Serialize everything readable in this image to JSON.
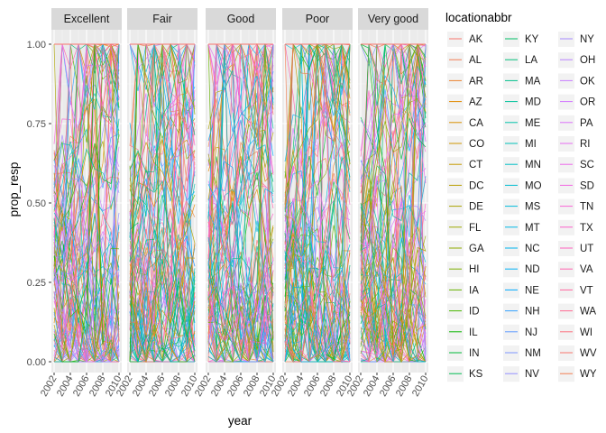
{
  "chart_data": {
    "type": "line",
    "facets": [
      "Excellent",
      "Fair",
      "Good",
      "Poor",
      "Very good"
    ],
    "xlabel": "year",
    "ylabel": "prop_resp",
    "xlim": [
      2002,
      2010
    ],
    "ylim": [
      0,
      1
    ],
    "x_ticks": [
      "2002",
      "2004",
      "2006",
      "2008",
      "2010"
    ],
    "y_ticks": [
      "0.00",
      "0.25",
      "0.50",
      "0.75",
      "1.00"
    ],
    "grid": true,
    "legend": {
      "title": "locationabbr",
      "position": "right",
      "entries": [
        {
          "label": "AK",
          "color": "#F8766D"
        },
        {
          "label": "AL",
          "color": "#F27D52"
        },
        {
          "label": "AR",
          "color": "#EA8331"
        },
        {
          "label": "AZ",
          "color": "#E18A00"
        },
        {
          "label": "CA",
          "color": "#D89000"
        },
        {
          "label": "CO",
          "color": "#CE9500"
        },
        {
          "label": "CT",
          "color": "#C49A00"
        },
        {
          "label": "DC",
          "color": "#B89E00"
        },
        {
          "label": "DE",
          "color": "#ABA300"
        },
        {
          "label": "FL",
          "color": "#9DA700"
        },
        {
          "label": "GA",
          "color": "#8EAB00"
        },
        {
          "label": "HI",
          "color": "#7CAE00"
        },
        {
          "label": "IA",
          "color": "#66B200"
        },
        {
          "label": "ID",
          "color": "#49B500"
        },
        {
          "label": "IL",
          "color": "#0CB702"
        },
        {
          "label": "IN",
          "color": "#00BA38"
        },
        {
          "label": "KS",
          "color": "#00BC53"
        },
        {
          "label": "KY",
          "color": "#00BE67"
        },
        {
          "label": "LA",
          "color": "#00BF7A"
        },
        {
          "label": "MA",
          "color": "#00C08B"
        },
        {
          "label": "MD",
          "color": "#00C19B"
        },
        {
          "label": "ME",
          "color": "#00C1AA"
        },
        {
          "label": "MI",
          "color": "#00C0B8"
        },
        {
          "label": "MN",
          "color": "#00BFC4"
        },
        {
          "label": "MO",
          "color": "#00BDD0"
        },
        {
          "label": "MS",
          "color": "#00BBDC"
        },
        {
          "label": "MT",
          "color": "#00B8E7"
        },
        {
          "label": "NC",
          "color": "#00B4EF"
        },
        {
          "label": "ND",
          "color": "#00B0F6"
        },
        {
          "label": "NE",
          "color": "#00ABFD"
        },
        {
          "label": "NH",
          "color": "#35A2FF"
        },
        {
          "label": "NJ",
          "color": "#619CFF"
        },
        {
          "label": "NM",
          "color": "#7F96FF"
        },
        {
          "label": "NV",
          "color": "#9590FF"
        },
        {
          "label": "NY",
          "color": "#A58AFF"
        },
        {
          "label": "OH",
          "color": "#B983FF"
        },
        {
          "label": "OK",
          "color": "#C77CFF"
        },
        {
          "label": "OR",
          "color": "#D376FF"
        },
        {
          "label": "PA",
          "color": "#DC71FA"
        },
        {
          "label": "RI",
          "color": "#E56CF3"
        },
        {
          "label": "SC",
          "color": "#EC69EB"
        },
        {
          "label": "SD",
          "color": "#F266E1"
        },
        {
          "label": "TN",
          "color": "#F865D6"
        },
        {
          "label": "TX",
          "color": "#FC61C9"
        },
        {
          "label": "UT",
          "color": "#FF61BD"
        },
        {
          "label": "VA",
          "color": "#FF62AF"
        },
        {
          "label": "VT",
          "color": "#FF65A0"
        },
        {
          "label": "WA",
          "color": "#FF6A92"
        },
        {
          "label": "WI",
          "color": "#FC717F"
        },
        {
          "label": "WV",
          "color": "#F8766D"
        },
        {
          "label": "WY",
          "color": "#F27D52"
        }
      ]
    }
  }
}
